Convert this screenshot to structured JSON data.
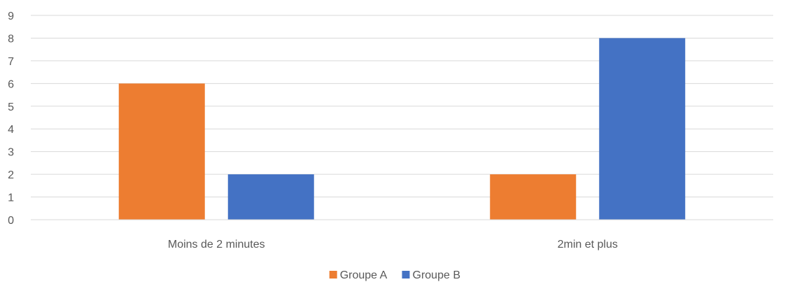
{
  "chart_data": {
    "type": "bar",
    "title": "",
    "xlabel": "",
    "ylabel": "",
    "categories": [
      "Moins de 2 minutes",
      "2min et plus"
    ],
    "series": [
      {
        "name": "Groupe A",
        "color": "#ED7D31",
        "values": [
          6,
          2
        ]
      },
      {
        "name": "Groupe B",
        "color": "#4472C4",
        "values": [
          2,
          8
        ]
      }
    ],
    "ylim": [
      0,
      9
    ],
    "yticks": [
      0,
      1,
      2,
      3,
      4,
      5,
      6,
      7,
      8,
      9
    ],
    "grid": true,
    "legend_position": "bottom"
  }
}
